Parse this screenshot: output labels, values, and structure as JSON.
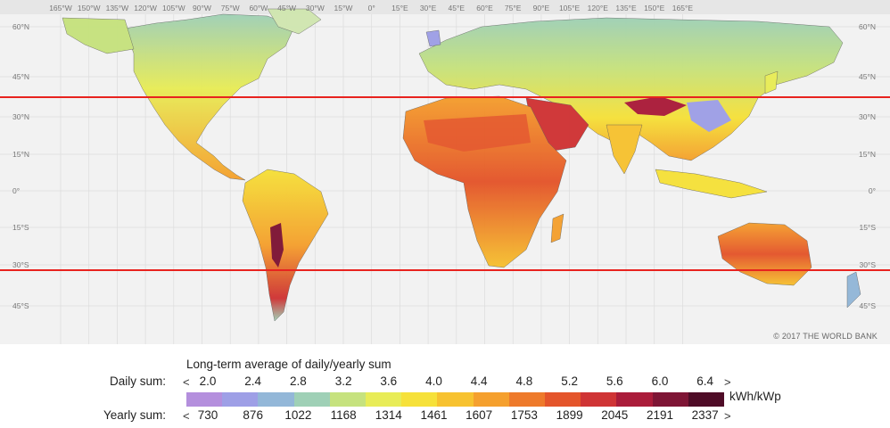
{
  "map": {
    "copyright": "© 2017 THE WORLD BANK",
    "lon_labels": [
      "165°W",
      "150°W",
      "135°W",
      "120°W",
      "105°W",
      "90°W",
      "75°W",
      "60°W",
      "45°W",
      "30°W",
      "15°W",
      "0°",
      "15°E",
      "30°E",
      "45°E",
      "60°E",
      "75°E",
      "90°E",
      "105°E",
      "120°E",
      "135°E",
      "150°E",
      "165°E"
    ],
    "lat_labels_left": [
      "60°N",
      "45°N",
      "30°N",
      "15°N",
      "0°",
      "15°S",
      "30°S",
      "45°S"
    ],
    "lat_labels_right": [
      "60°N",
      "45°N",
      "30°N",
      "15°N",
      "0°",
      "15°S",
      "30°S",
      "45°S"
    ],
    "highlight_lines_color": "#e8231f",
    "ocean_color": "#f2f2f2"
  },
  "legend": {
    "title": "Long-term average of daily/yearly sum",
    "daily_label": "Daily sum:",
    "yearly_label": "Yearly sum:",
    "unit": "kWh/kWp",
    "less_than": "<",
    "greater_than": ">",
    "daily_values": [
      "2.0",
      "2.4",
      "2.8",
      "3.2",
      "3.6",
      "4.0",
      "4.4",
      "4.8",
      "5.2",
      "5.6",
      "6.0",
      "6.4"
    ],
    "yearly_values": [
      "730",
      "876",
      "1022",
      "1168",
      "1314",
      "1461",
      "1607",
      "1753",
      "1899",
      "2045",
      "2191",
      "2337"
    ],
    "colors": [
      "#b48fdd",
      "#9e9fe6",
      "#93b7d8",
      "#9fd0b6",
      "#c6e27e",
      "#e8ec57",
      "#f6e13a",
      "#f7c230",
      "#f5a02e",
      "#ee7a2b",
      "#e4552b",
      "#cf3435",
      "#aa1c3a",
      "#7e1535",
      "#4f0c27"
    ]
  }
}
